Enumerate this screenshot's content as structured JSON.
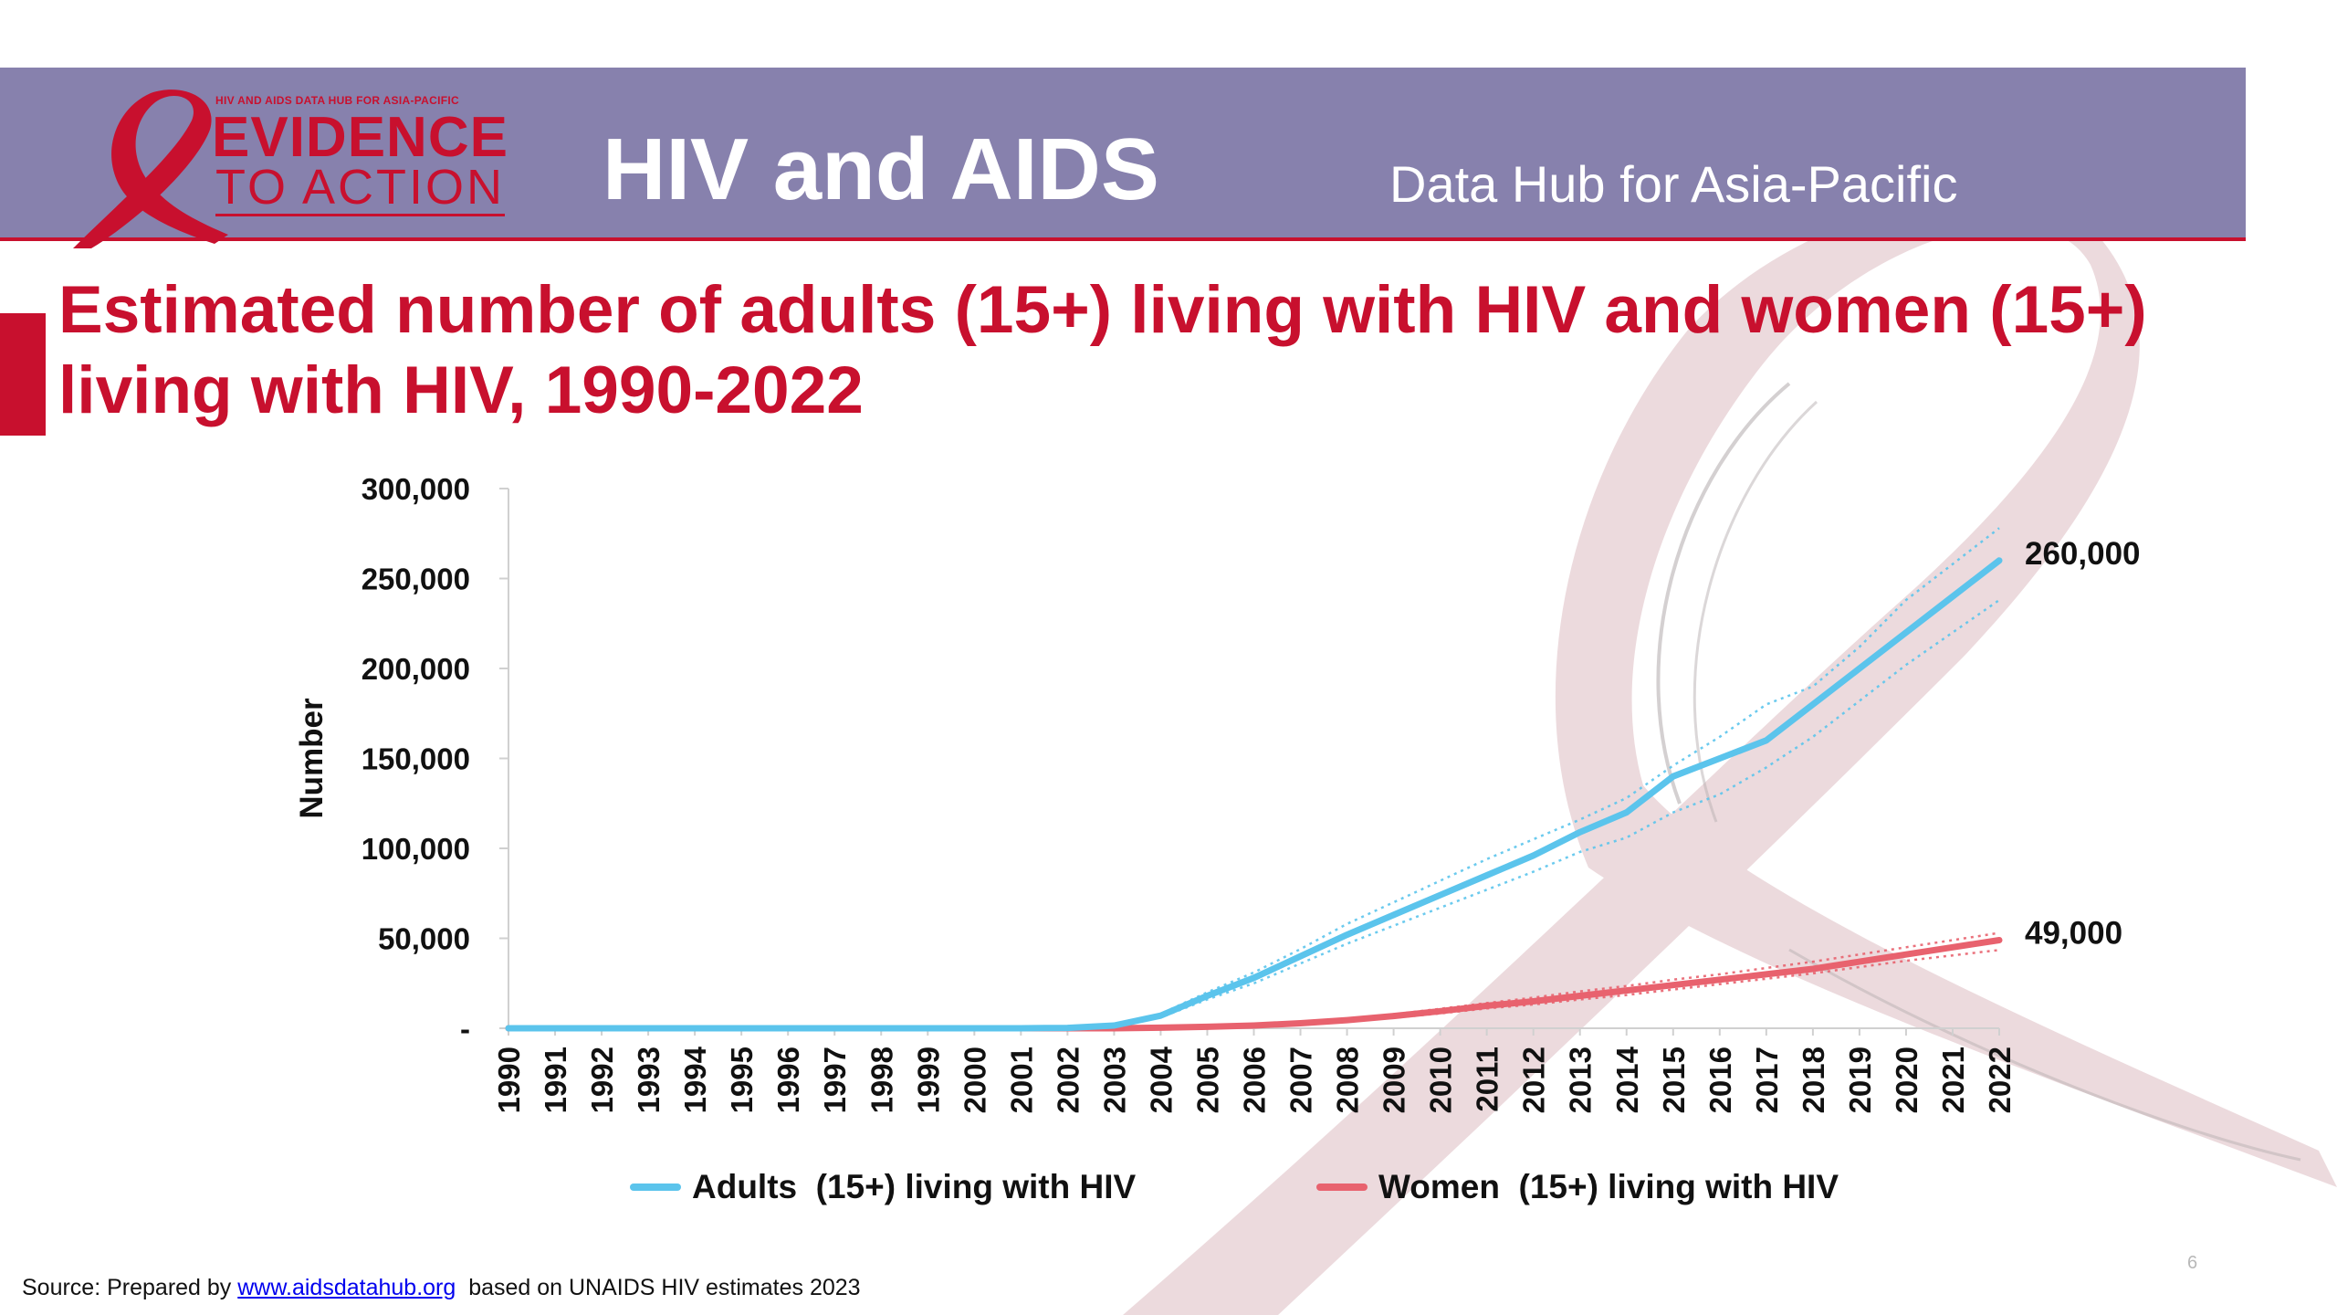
{
  "header": {
    "logo_tagline": "HIV AND AIDS DATA HUB FOR ASIA-PACIFIC",
    "logo_line1": "EVIDENCE",
    "logo_line2": "TO ACTION",
    "title": "HIV and AIDS",
    "subtitle": "Data Hub for Asia-Pacific"
  },
  "slide_title": "Estimated number of adults (15+) living with HIV and women (15+) living with HIV, 1990-2022",
  "source": {
    "prefix": "Source: Prepared by ",
    "link_text": "www.aidsdatahub.org",
    "suffix": "  based on UNAIDS HIV estimates 2023"
  },
  "page_number": "6",
  "colors": {
    "header_bg": "#8781ad",
    "accent_red": "#c8102e",
    "adults_line": "#5bc4ec",
    "women_line": "#e8626e"
  },
  "chart_data": {
    "type": "line",
    "title": "",
    "xlabel": "",
    "ylabel": "Number",
    "ylim": [
      0,
      300000
    ],
    "yticks": [
      0,
      50000,
      100000,
      150000,
      200000,
      250000,
      300000
    ],
    "ytick_labels": [
      "-",
      "50,000",
      "100,000",
      "150,000",
      "200,000",
      "250,000",
      "300,000"
    ],
    "x": [
      "1990",
      "1991",
      "1992",
      "1993",
      "1994",
      "1995",
      "1996",
      "1997",
      "1998",
      "1999",
      "2000",
      "2001",
      "2002",
      "2003",
      "2004",
      "2005",
      "2006",
      "2007",
      "2008",
      "2009",
      "2010",
      "2011",
      "2012",
      "2013",
      "2014",
      "2015",
      "2016",
      "2017",
      "2018",
      "2019",
      "2020",
      "2021",
      "2022"
    ],
    "grid": false,
    "legend_position": "bottom",
    "series": [
      {
        "name": "Adults  (15+) living with HIV",
        "color": "#5bc4ec",
        "values": [
          0,
          0,
          0,
          0,
          0,
          0,
          0,
          0,
          0,
          0,
          0,
          0,
          200,
          1500,
          7000,
          18000,
          28000,
          40000,
          52000,
          63000,
          74000,
          85000,
          96000,
          109000,
          120000,
          140000,
          150000,
          160000,
          180000,
          200000,
          220000,
          240000,
          260000
        ],
        "lower": [
          0,
          0,
          0,
          0,
          0,
          0,
          0,
          0,
          0,
          0,
          0,
          0,
          100,
          1200,
          6000,
          16000,
          25000,
          36000,
          47000,
          57000,
          67000,
          77000,
          87000,
          98000,
          106000,
          120000,
          130000,
          145000,
          162000,
          182000,
          202000,
          220000,
          238000
        ],
        "upper": [
          0,
          0,
          0,
          0,
          0,
          0,
          0,
          0,
          0,
          0,
          0,
          0,
          300,
          1800,
          8000,
          20000,
          31000,
          44000,
          58000,
          70000,
          82000,
          94000,
          105000,
          116000,
          128000,
          146000,
          162000,
          180000,
          190000,
          212000,
          238000,
          258000,
          278000
        ],
        "end_label": "260,000"
      },
      {
        "name": "Women  (15+) living with HIV",
        "color": "#e8626e",
        "values": [
          0,
          0,
          0,
          0,
          0,
          0,
          0,
          0,
          0,
          0,
          0,
          0,
          0,
          0,
          300,
          800,
          1500,
          2800,
          4500,
          6800,
          9500,
          12500,
          15000,
          18000,
          21000,
          24000,
          27000,
          30000,
          33000,
          37000,
          41000,
          45000,
          49000
        ],
        "lower": [
          0,
          0,
          0,
          0,
          0,
          0,
          0,
          0,
          0,
          0,
          0,
          0,
          0,
          0,
          200,
          600,
          1200,
          2300,
          3800,
          5800,
          8200,
          11000,
          13200,
          16000,
          18500,
          21500,
          24500,
          27500,
          30500,
          34000,
          37500,
          40500,
          43500
        ],
        "upper": [
          0,
          0,
          0,
          0,
          0,
          0,
          0,
          0,
          0,
          0,
          0,
          0,
          0,
          0,
          400,
          1000,
          1800,
          3300,
          5300,
          7800,
          10800,
          14000,
          17000,
          20500,
          23500,
          27000,
          30000,
          33500,
          37000,
          41000,
          45000,
          49000,
          53000
        ],
        "end_label": "49,000"
      }
    ]
  }
}
